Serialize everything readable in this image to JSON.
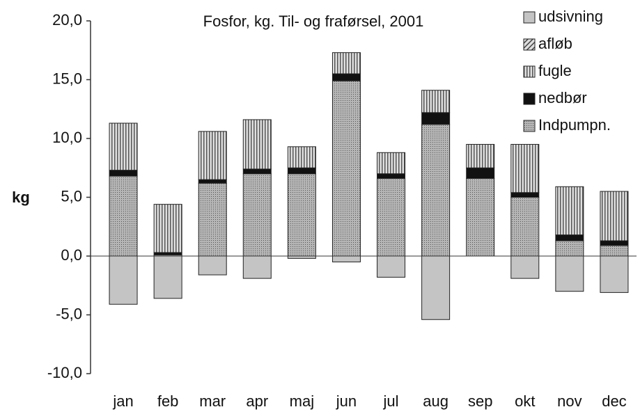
{
  "chart_data": {
    "type": "stacked-bar",
    "title": "Fosfor, kg. Til- og fraførsel, 2001",
    "y_label": "kg",
    "categories": [
      "jan",
      "feb",
      "mar",
      "apr",
      "maj",
      "jun",
      "jul",
      "aug",
      "sep",
      "okt",
      "nov",
      "dec"
    ],
    "series": [
      {
        "name": "udsivning",
        "color": "#c4c4c4",
        "pattern": "solid",
        "values": [
          -4.1,
          -3.6,
          -1.6,
          -1.9,
          -0.2,
          -0.5,
          -1.8,
          -5.4,
          0,
          -1.9,
          -3.0,
          -3.1
        ]
      },
      {
        "name": "afløb",
        "color": "#888888",
        "pattern": "diagonal",
        "values": [
          0,
          0,
          0,
          0,
          0,
          0,
          0,
          0,
          0,
          0,
          0,
          0
        ]
      },
      {
        "name": "fugle",
        "color": "#8a8a8a",
        "pattern": "vertical",
        "values": [
          4.0,
          4.1,
          4.1,
          4.2,
          1.8,
          1.8,
          1.8,
          1.9,
          2.0,
          4.1,
          4.1,
          4.2
        ]
      },
      {
        "name": "nedbør",
        "color": "#111111",
        "pattern": "solid",
        "values": [
          0.5,
          0.2,
          0.3,
          0.4,
          0.5,
          0.6,
          0.4,
          1.0,
          0.9,
          0.4,
          0.5,
          0.4
        ]
      },
      {
        "name": "Indpumpn.",
        "color": "#9a9a9a",
        "pattern": "dots",
        "values": [
          6.8,
          0.1,
          6.2,
          7.0,
          7.0,
          14.9,
          6.6,
          11.2,
          6.6,
          5.0,
          1.3,
          0.9
        ]
      }
    ],
    "ylim": [
      -10,
      20
    ],
    "yticks": [
      {
        "value": -10,
        "label": "-10,0"
      },
      {
        "value": -5,
        "label": "-5,0"
      },
      {
        "value": 0,
        "label": "0,0"
      },
      {
        "value": 5,
        "label": "5,0"
      },
      {
        "value": 10,
        "label": "10,0"
      },
      {
        "value": 15,
        "label": "15,0"
      },
      {
        "value": 20,
        "label": "20,0"
      }
    ],
    "legend": "top-right"
  }
}
